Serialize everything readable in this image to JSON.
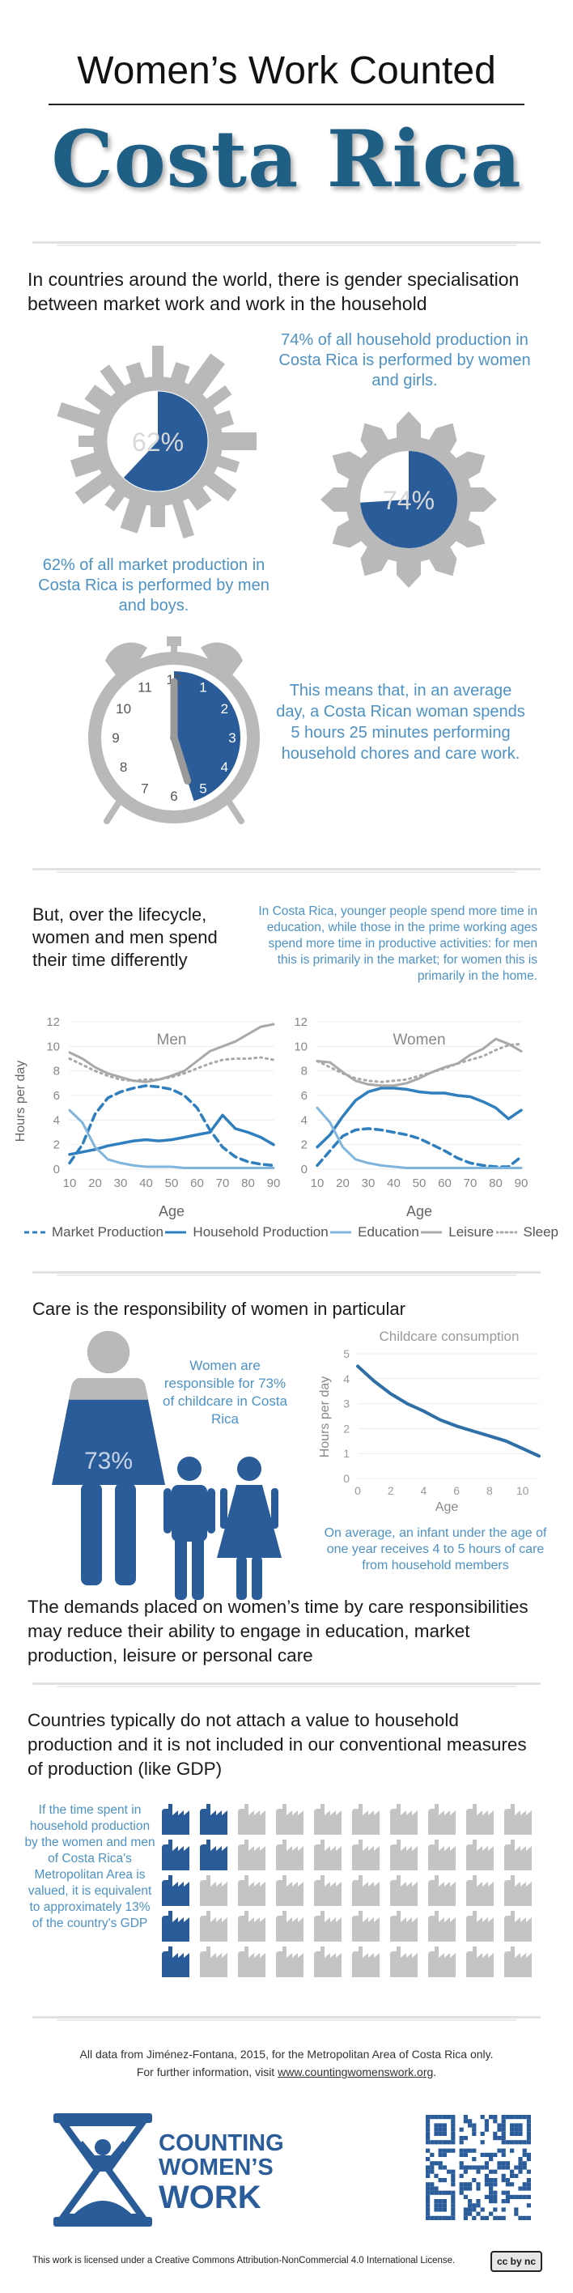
{
  "header": {
    "title": "Women’s Work Counted",
    "country": "Costa Rica"
  },
  "section1": {
    "intro": "In countries around the world, there is gender specialisation between market work and work in the household",
    "household_stat_text": "74% of all household production in Costa Rica is performed by women and girls.",
    "household_pct_label": "74%",
    "household_pct": 74,
    "market_stat_text": "62% of all market production in Costa Rica is performed by men and boys.",
    "market_pct_label": "62%",
    "market_pct": 62,
    "clock_text": "This means that, in an average day, a Costa Rican woman spends 5 hours 25 minutes performing household chores and care work.",
    "clock_numbers": [
      "12",
      "1",
      "2",
      "3",
      "4",
      "5",
      "6",
      "7",
      "8",
      "9",
      "10",
      "11"
    ],
    "clock_hours": 5.42
  },
  "section2": {
    "heading": "But, over the lifecycle, women and men spend their time differently",
    "note": "In Costa Rica, younger people spend more time in education, while those in the prime working ages spend more time in productive activities: for men this is primarily in the market; for women this is primarily in the home.",
    "ylabel": "Hours per day",
    "xlabel": "Age",
    "legend": [
      {
        "name": "Market Production",
        "style": "dashed",
        "color": "#2f7fbf"
      },
      {
        "name": "Household Production",
        "style": "solid",
        "color": "#2f7fbf"
      },
      {
        "name": "Education",
        "style": "solid",
        "color": "#7fb4dd"
      },
      {
        "name": "Leisure",
        "style": "solid",
        "color": "#a9a9a9"
      },
      {
        "name": "Sleep",
        "style": "dotted",
        "color": "#a9a9a9"
      }
    ]
  },
  "chart_data": [
    {
      "type": "line",
      "title": "Men",
      "xlabel": "Age",
      "ylabel": "Hours per day",
      "xlim": [
        10,
        90
      ],
      "ylim": [
        0,
        12
      ],
      "xticks": [
        "10",
        "20",
        "30",
        "40",
        "50",
        "60",
        "70",
        "80",
        "90"
      ],
      "yticks": [
        "0",
        "2",
        "4",
        "6",
        "8",
        "10",
        "12"
      ],
      "x": [
        10,
        15,
        20,
        25,
        30,
        35,
        40,
        45,
        50,
        55,
        60,
        65,
        70,
        75,
        80,
        85,
        90
      ],
      "series": [
        {
          "name": "Market Production",
          "values": [
            0.5,
            2.0,
            4.5,
            5.8,
            6.3,
            6.6,
            6.8,
            6.7,
            6.5,
            6.0,
            5.0,
            3.2,
            1.8,
            1.0,
            0.6,
            0.4,
            0.3
          ]
        },
        {
          "name": "Household Production",
          "values": [
            1.2,
            1.4,
            1.6,
            1.9,
            2.1,
            2.3,
            2.4,
            2.3,
            2.4,
            2.6,
            2.8,
            3.0,
            4.4,
            3.3,
            3.0,
            2.6,
            2.0
          ]
        },
        {
          "name": "Education",
          "values": [
            4.8,
            3.8,
            1.8,
            0.8,
            0.5,
            0.3,
            0.2,
            0.2,
            0.2,
            0.1,
            0.1,
            0.1,
            0.1,
            0.1,
            0.1,
            0.1,
            0.1
          ]
        },
        {
          "name": "Leisure",
          "values": [
            9.5,
            9.0,
            8.3,
            7.8,
            7.5,
            7.2,
            7.1,
            7.3,
            7.6,
            8.0,
            8.8,
            9.6,
            10.0,
            10.4,
            11.0,
            11.6,
            11.8
          ]
        },
        {
          "name": "Sleep",
          "values": [
            9.0,
            8.5,
            8.0,
            7.6,
            7.3,
            7.2,
            7.3,
            7.3,
            7.5,
            7.8,
            8.2,
            8.6,
            8.9,
            9.0,
            9.0,
            9.1,
            8.9
          ]
        }
      ]
    },
    {
      "type": "line",
      "title": "Women",
      "xlabel": "Age",
      "ylabel": "Hours per day",
      "xlim": [
        10,
        90
      ],
      "ylim": [
        0,
        12
      ],
      "xticks": [
        "10",
        "20",
        "30",
        "40",
        "50",
        "60",
        "70",
        "80",
        "90"
      ],
      "yticks": [
        "0",
        "2",
        "4",
        "6",
        "8",
        "10",
        "12"
      ],
      "x": [
        10,
        15,
        20,
        25,
        30,
        35,
        40,
        45,
        50,
        55,
        60,
        65,
        70,
        75,
        80,
        85,
        90
      ],
      "series": [
        {
          "name": "Market Production",
          "values": [
            0.3,
            1.5,
            2.7,
            3.2,
            3.3,
            3.2,
            3.0,
            2.8,
            2.5,
            2.0,
            1.5,
            0.9,
            0.5,
            0.3,
            0.2,
            0.2,
            1.0
          ]
        },
        {
          "name": "Household Production",
          "values": [
            1.8,
            2.8,
            4.3,
            5.6,
            6.3,
            6.6,
            6.6,
            6.5,
            6.3,
            6.2,
            6.2,
            6.0,
            5.9,
            5.5,
            5.0,
            4.1,
            4.8
          ]
        },
        {
          "name": "Education",
          "values": [
            5.0,
            3.8,
            1.8,
            0.8,
            0.5,
            0.3,
            0.2,
            0.1,
            0.1,
            0.1,
            0.1,
            0.1,
            0.1,
            0.1,
            0.1,
            0.1,
            0.1
          ]
        },
        {
          "name": "Leisure",
          "values": [
            8.8,
            8.7,
            7.9,
            7.2,
            6.9,
            6.8,
            6.8,
            7.0,
            7.4,
            7.9,
            8.3,
            8.6,
            9.3,
            9.8,
            10.6,
            10.2,
            9.6
          ]
        },
        {
          "name": "Sleep",
          "values": [
            8.8,
            8.3,
            7.8,
            7.4,
            7.2,
            7.1,
            7.2,
            7.3,
            7.6,
            7.9,
            8.2,
            8.6,
            8.9,
            9.2,
            9.7,
            10.1,
            10.2
          ]
        }
      ]
    },
    {
      "type": "line",
      "title": "Childcare consumption",
      "xlabel": "Age",
      "ylabel": "Hours per day",
      "xlim": [
        0,
        11
      ],
      "ylim": [
        0,
        5
      ],
      "xticks": [
        "0",
        "2",
        "4",
        "6",
        "8",
        "10"
      ],
      "yticks": [
        "0",
        "1",
        "2",
        "3",
        "4",
        "5"
      ],
      "x": [
        0,
        1,
        2,
        3,
        4,
        5,
        6,
        7,
        8,
        9,
        10,
        11
      ],
      "series": [
        {
          "name": "Childcare",
          "values": [
            4.5,
            3.9,
            3.4,
            3.0,
            2.7,
            2.35,
            2.1,
            1.9,
            1.7,
            1.5,
            1.2,
            0.9
          ]
        }
      ]
    }
  ],
  "section3": {
    "heading": "Care is the responsibility of women in particular",
    "women_text": "Women are responsible for 73% of childcare in Costa Rica",
    "women_pct_label": "73%",
    "women_pct": 73,
    "infant_text": "On average, an infant under the age of one year receives 4 to 5 hours of care from household members",
    "demands_text": "The demands placed on women’s time by care responsibilities may reduce their ability to engage in education, market production, leisure or personal care"
  },
  "section4": {
    "heading": "Countries typically do not attach a value to household production and it is not included in our conventional measures of production (like GDP)",
    "gdp_text": "If the time spent in household production by the women and men of Costa Rica's Metropolitan Area is valued, it is equivalent to approximately 13% of the country's GDP",
    "factory_grid": {
      "rows": 5,
      "cols": 10,
      "highlighted_per_row": [
        2,
        2,
        1,
        1,
        1
      ]
    },
    "colors": {
      "highlight": "#2b5c9a",
      "muted": "#c4c4c4"
    }
  },
  "footer": {
    "source_line": "All data from Jiménez-Fontana, 2015, for the Metropolitan Area of Costa Rica only.",
    "info_prefix": "For further information, visit",
    "info_link": "www.countingwomenswork.org",
    "info_suffix": ".",
    "logo_line1": "COUNTING",
    "logo_line2": "WOMEN’S",
    "logo_line3": "WORK",
    "license": "This work is licensed under a Creative Commons Attribution-NonCommercial 4.0 International License.",
    "cc_badge": "cc by nc"
  },
  "colors": {
    "dark_blue": "#2b5c9a",
    "mid_blue": "#2f7fbf",
    "light_blue_text": "#4d92c5",
    "gray": "#b7b7b7",
    "title_teal": "#1f5f86"
  }
}
